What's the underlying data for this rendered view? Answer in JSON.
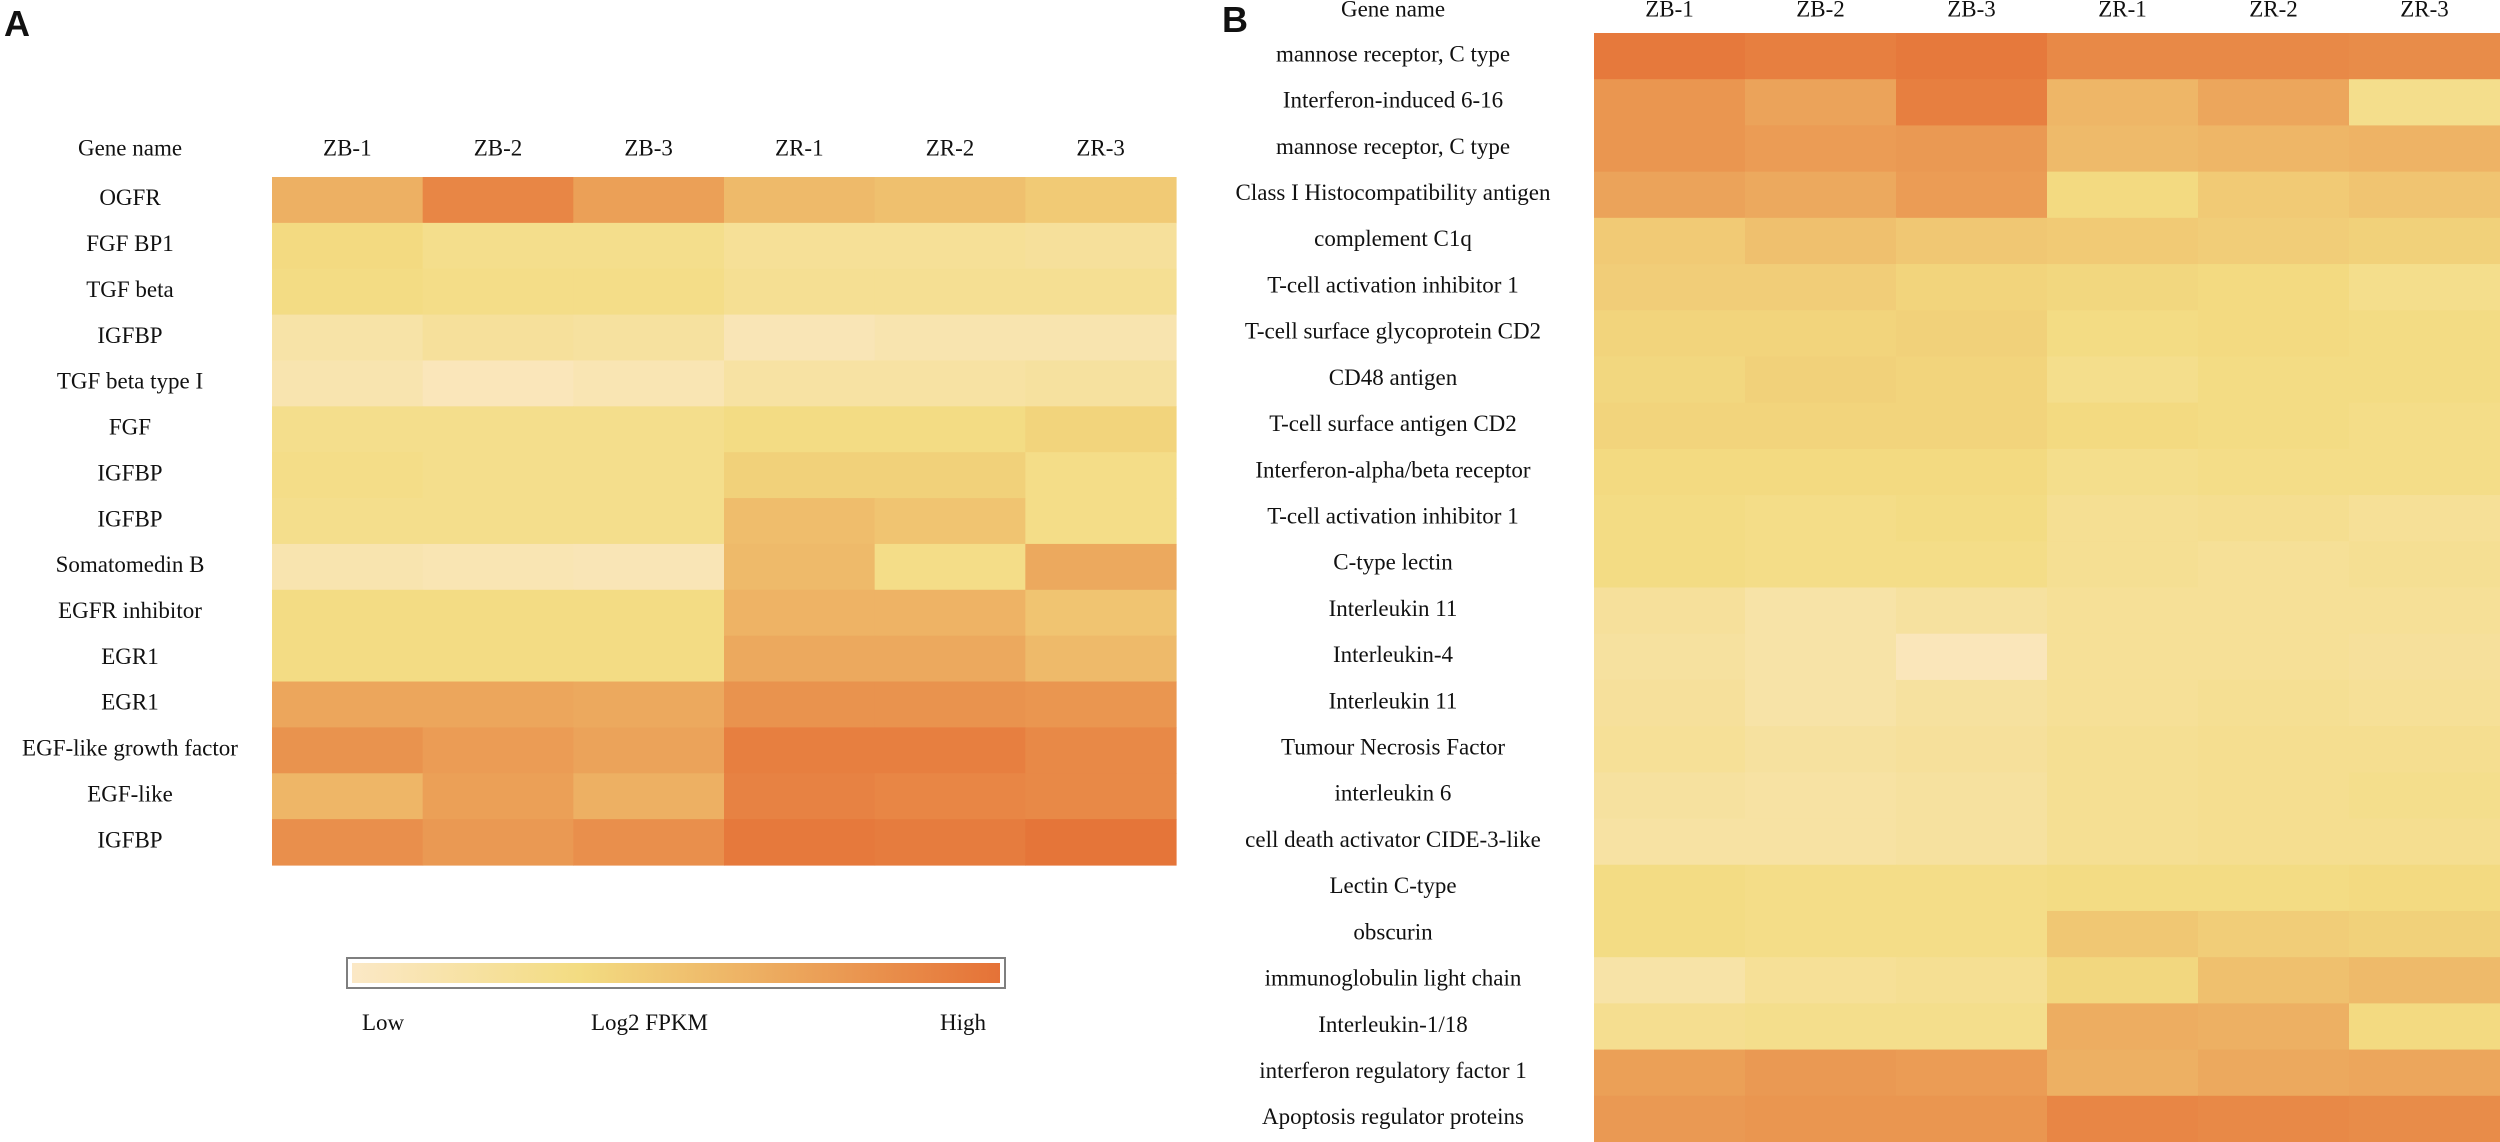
{
  "panel_a_letter": "A",
  "panel_b_letter": "B",
  "colors": {
    "low": "#fbe8c6",
    "mid": "#f3dc82",
    "high": "#e57237"
  },
  "legend": {
    "low": "Low",
    "title": "Log2 FPKM",
    "high": "High"
  },
  "chart_data": [
    {
      "type": "heatmap",
      "panel": "A",
      "row_header": "Gene name",
      "columns": [
        "ZB-1",
        "ZB-2",
        "ZB-3",
        "ZR-1",
        "ZR-2",
        "ZR-3"
      ],
      "rows": [
        "OGFR",
        "FGF BP1",
        "TGF beta",
        "IGFBP",
        "TGF beta type I",
        "FGF",
        "IGFBP",
        "IGFBP",
        "Somatomedin B",
        "EGFR inhibitor",
        "EGR1",
        "EGR1",
        "EGF-like growth factor",
        "EGF-like",
        "IGFBP"
      ],
      "value_scale": "relative Log2 FPKM (0 = Low, 1 = High)",
      "values": [
        [
          0.62,
          0.88,
          0.72,
          0.56,
          0.52,
          0.46
        ],
        [
          0.36,
          0.3,
          0.3,
          0.24,
          0.24,
          0.22
        ],
        [
          0.34,
          0.32,
          0.32,
          0.26,
          0.26,
          0.26
        ],
        [
          0.16,
          0.22,
          0.2,
          0.08,
          0.12,
          0.12
        ],
        [
          0.12,
          0.06,
          0.1,
          0.18,
          0.18,
          0.2
        ],
        [
          0.3,
          0.3,
          0.3,
          0.34,
          0.34,
          0.4
        ],
        [
          0.32,
          0.3,
          0.3,
          0.42,
          0.42,
          0.32
        ],
        [
          0.3,
          0.3,
          0.3,
          0.54,
          0.5,
          0.32
        ],
        [
          0.12,
          0.1,
          0.08,
          0.56,
          0.32,
          0.66
        ],
        [
          0.34,
          0.34,
          0.34,
          0.6,
          0.6,
          0.5
        ],
        [
          0.34,
          0.34,
          0.34,
          0.66,
          0.66,
          0.56
        ],
        [
          0.68,
          0.68,
          0.66,
          0.8,
          0.8,
          0.78
        ],
        [
          0.8,
          0.74,
          0.7,
          0.92,
          0.92,
          0.86
        ],
        [
          0.58,
          0.72,
          0.62,
          0.9,
          0.88,
          0.86
        ],
        [
          0.82,
          0.76,
          0.82,
          0.96,
          0.94,
          0.98
        ]
      ]
    },
    {
      "type": "heatmap",
      "panel": "B",
      "row_header": "Gene name",
      "columns": [
        "ZB-1",
        "ZB-2",
        "ZB-3",
        "ZR-1",
        "ZR-2",
        "ZR-3"
      ],
      "rows": [
        "mannose receptor, C type",
        "Interferon-induced 6-16",
        "mannose receptor, C type",
        "Class I Histocompatibility antigen",
        "complement C1q",
        "T-cell activation inhibitor 1",
        "T-cell surface glycoprotein CD2",
        "CD48 antigen",
        "T-cell surface antigen CD2",
        "Interferon-alpha/beta receptor",
        "T-cell activation inhibitor 1",
        "C-type lectin",
        "Interleukin 11",
        "Interleukin-4",
        "Interleukin 11",
        "Tumour Necrosis Factor",
        "interleukin 6",
        "cell death activator CIDE-3-like",
        "Lectin C-type",
        "obscurin",
        "immunoglobulin light chain",
        "Interleukin-1/18",
        "interferon regulatory factor 1",
        "Apoptosis regulator proteins"
      ],
      "value_scale": "relative Log2 FPKM (0 = Low, 1 = High)",
      "values": [
        [
          0.96,
          0.92,
          0.96,
          0.86,
          0.86,
          0.84
        ],
        [
          0.78,
          0.7,
          0.92,
          0.58,
          0.68,
          0.3
        ],
        [
          0.78,
          0.74,
          0.76,
          0.56,
          0.58,
          0.6
        ],
        [
          0.7,
          0.66,
          0.74,
          0.36,
          0.46,
          0.5
        ],
        [
          0.46,
          0.52,
          0.48,
          0.46,
          0.44,
          0.42
        ],
        [
          0.44,
          0.44,
          0.4,
          0.38,
          0.36,
          0.3
        ],
        [
          0.4,
          0.4,
          0.42,
          0.34,
          0.36,
          0.34
        ],
        [
          0.38,
          0.42,
          0.4,
          0.3,
          0.34,
          0.34
        ],
        [
          0.4,
          0.4,
          0.4,
          0.36,
          0.34,
          0.32
        ],
        [
          0.36,
          0.36,
          0.36,
          0.3,
          0.32,
          0.32
        ],
        [
          0.34,
          0.32,
          0.34,
          0.26,
          0.28,
          0.24
        ],
        [
          0.34,
          0.32,
          0.32,
          0.26,
          0.24,
          0.26
        ],
        [
          0.22,
          0.16,
          0.2,
          0.24,
          0.24,
          0.24
        ],
        [
          0.2,
          0.16,
          0.06,
          0.24,
          0.24,
          0.22
        ],
        [
          0.22,
          0.16,
          0.2,
          0.24,
          0.26,
          0.24
        ],
        [
          0.24,
          0.2,
          0.22,
          0.26,
          0.28,
          0.28
        ],
        [
          0.2,
          0.18,
          0.2,
          0.26,
          0.28,
          0.3
        ],
        [
          0.18,
          0.18,
          0.2,
          0.26,
          0.28,
          0.28
        ],
        [
          0.34,
          0.32,
          0.32,
          0.34,
          0.34,
          0.36
        ],
        [
          0.34,
          0.32,
          0.32,
          0.48,
          0.44,
          0.42
        ],
        [
          0.16,
          0.24,
          0.26,
          0.38,
          0.52,
          0.56
        ],
        [
          0.28,
          0.3,
          0.3,
          0.64,
          0.62,
          0.36
        ],
        [
          0.72,
          0.76,
          0.74,
          0.62,
          0.66,
          0.68
        ],
        [
          0.76,
          0.78,
          0.78,
          0.88,
          0.86,
          0.84
        ]
      ]
    }
  ]
}
